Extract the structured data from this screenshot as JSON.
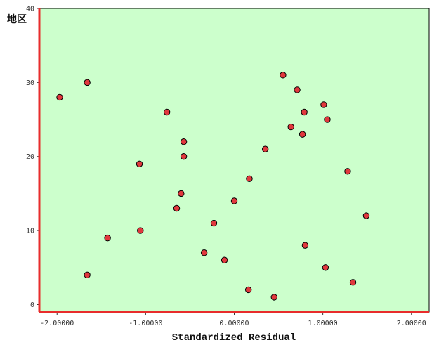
{
  "chart_data": {
    "type": "scatter",
    "title": "",
    "xlabel": "Standardized Residual",
    "ylabel": "地区",
    "xlim": [
      -2.2,
      2.2
    ],
    "ylim": [
      -1,
      40
    ],
    "x_ticks": [
      -2,
      -1,
      0,
      1,
      2
    ],
    "x_tick_labels": [
      "-2.00000",
      "-1.00000",
      "0.00000",
      "1.00000",
      "2.00000"
    ],
    "y_ticks": [
      0,
      10,
      20,
      30,
      40
    ],
    "y_tick_labels": [
      "0",
      "10",
      "20",
      "30",
      "40"
    ],
    "grid": false,
    "colors": {
      "plot_background": "#ccffcc",
      "marker_fill": "#e0383d",
      "marker_edge": "#000000",
      "left_axis": "#e82c2c",
      "bottom_axis": "#e82c2c"
    },
    "points": [
      {
        "x": -1.97,
        "y": 28
      },
      {
        "x": -1.66,
        "y": 30
      },
      {
        "x": -1.66,
        "y": 4
      },
      {
        "x": -1.43,
        "y": 9
      },
      {
        "x": -1.07,
        "y": 19
      },
      {
        "x": -1.06,
        "y": 10
      },
      {
        "x": -0.76,
        "y": 26
      },
      {
        "x": -0.65,
        "y": 13
      },
      {
        "x": -0.6,
        "y": 15
      },
      {
        "x": -0.57,
        "y": 22
      },
      {
        "x": -0.57,
        "y": 20
      },
      {
        "x": -0.34,
        "y": 7
      },
      {
        "x": -0.23,
        "y": 11
      },
      {
        "x": -0.11,
        "y": 6
      },
      {
        "x": 0.0,
        "y": 14
      },
      {
        "x": 0.16,
        "y": 2
      },
      {
        "x": 0.17,
        "y": 17
      },
      {
        "x": 0.35,
        "y": 21
      },
      {
        "x": 0.45,
        "y": 1
      },
      {
        "x": 0.55,
        "y": 31
      },
      {
        "x": 0.64,
        "y": 24
      },
      {
        "x": 0.71,
        "y": 29
      },
      {
        "x": 0.77,
        "y": 23
      },
      {
        "x": 0.79,
        "y": 26
      },
      {
        "x": 0.8,
        "y": 8
      },
      {
        "x": 1.01,
        "y": 27
      },
      {
        "x": 1.03,
        "y": 5
      },
      {
        "x": 1.05,
        "y": 25
      },
      {
        "x": 1.28,
        "y": 18
      },
      {
        "x": 1.34,
        "y": 3
      },
      {
        "x": 1.49,
        "y": 12
      }
    ]
  }
}
